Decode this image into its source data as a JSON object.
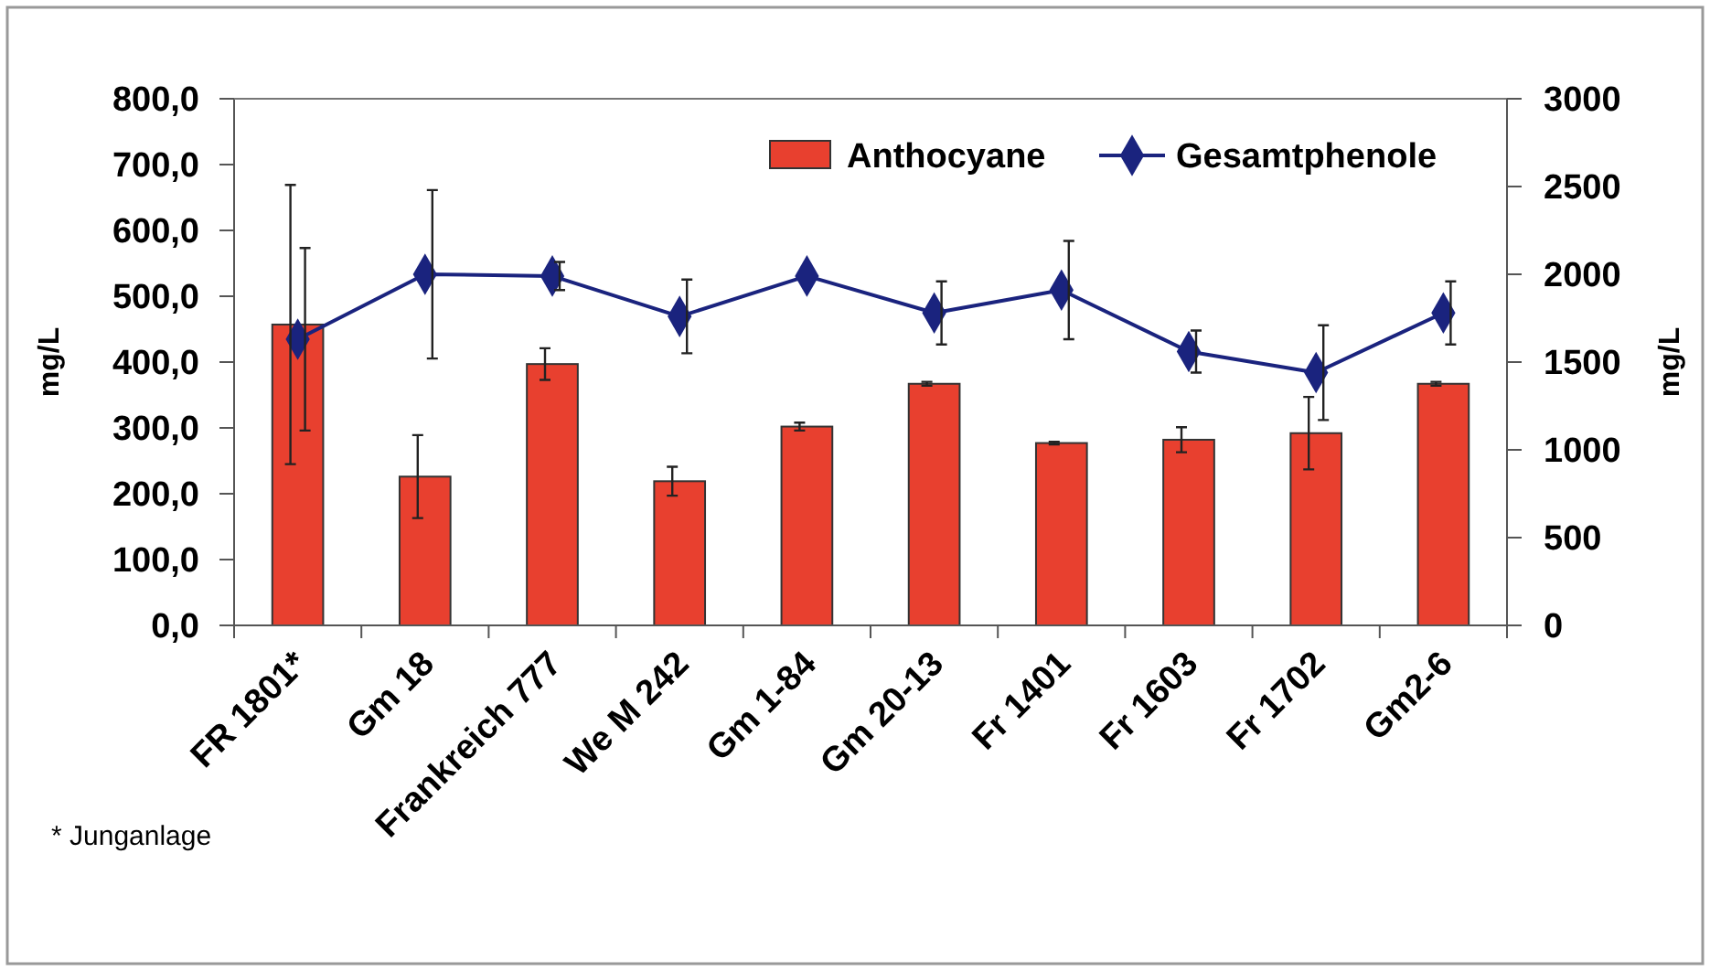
{
  "chart_data": {
    "type": "bar",
    "ylabel": "mg/L",
    "y2label": "mg/L",
    "categories": [
      "FR 1801*",
      "Gm 18",
      "Frankreich 777",
      "We M 242",
      "Gm 1-84",
      "Gm 20-13",
      "Fr 1401",
      "Fr 1603",
      "Fr 1702",
      "Gm2-6"
    ],
    "series": [
      {
        "name": "Anthocyane",
        "color": "#e8402f",
        "values": [
          457,
          226,
          397,
          219,
          302,
          367,
          277,
          282,
          292,
          367
        ],
        "errors": [
          212,
          63,
          24,
          22,
          6,
          3,
          2,
          19,
          55,
          3
        ]
      },
      {
        "name": "Gesamtphenole",
        "type": "line",
        "axis": "y2",
        "color": "#1a237e",
        "marker": "diamond",
        "values": [
          1630,
          2000,
          1990,
          1760,
          1990,
          1780,
          1910,
          1560,
          1440,
          1780
        ],
        "errors": [
          520,
          480,
          80,
          210,
          null,
          180,
          280,
          120,
          270,
          180
        ]
      }
    ],
    "ylim": [
      0,
      800
    ],
    "yticks": [
      {
        "value": 0,
        "label": "0,0"
      },
      {
        "value": 100,
        "label": "100,0"
      },
      {
        "value": 200,
        "label": "200,0"
      },
      {
        "value": 300,
        "label": "300,0"
      },
      {
        "value": 400,
        "label": "400,0"
      },
      {
        "value": 500,
        "label": "500,0"
      },
      {
        "value": 600,
        "label": "600,0"
      },
      {
        "value": 700,
        "label": "700,0"
      },
      {
        "value": 800,
        "label": "800,0"
      }
    ],
    "y2lim": [
      0,
      3000
    ],
    "y2ticks": [
      0,
      500,
      1000,
      1500,
      2000,
      2500,
      3000
    ],
    "legend": "top right",
    "grid": false,
    "annotations": [
      "* Junganlage"
    ]
  }
}
